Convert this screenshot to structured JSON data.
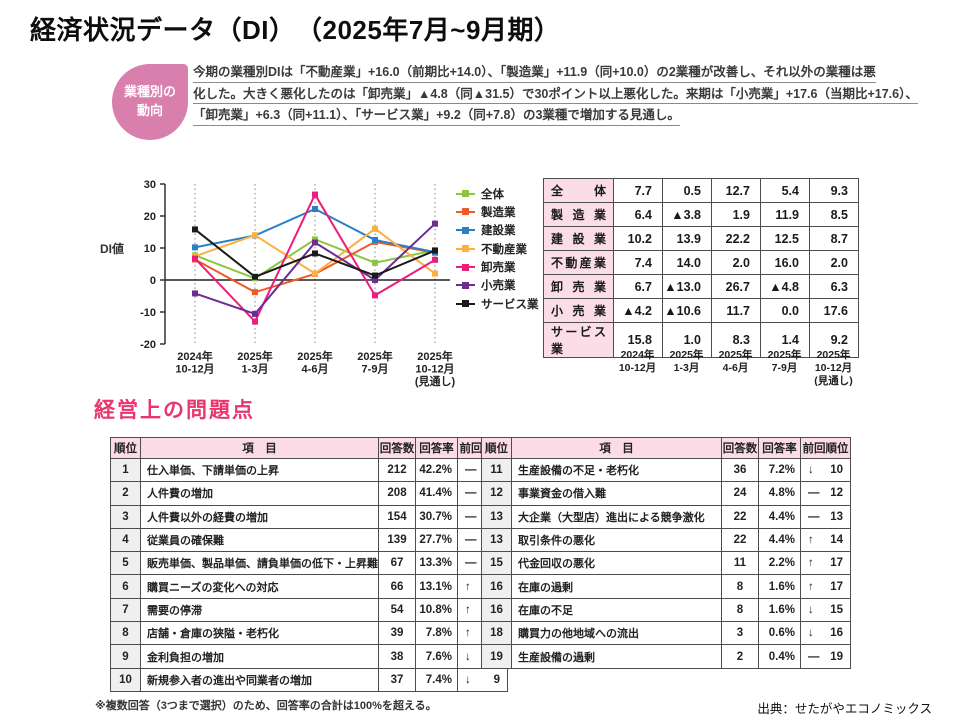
{
  "page": {
    "title": "経済状況データ（DI）　（2025年7月~9月期）",
    "source": "出典：せたがやエコノミックス"
  },
  "badge": {
    "line1": "業種別の",
    "line2": "動向",
    "color": "#d97fae"
  },
  "summary": {
    "lines": [
      "今期の業種別DIは「不動産業」+16.0（前期比+14.0）、「製造業」+11.9（同+10.0）の2業種が改善し、それ以外の業種は悪",
      "化した。大きく悪化したのは「卸売業」▲4.8（同▲31.5）で30ポイント以上悪化した。来期は「小売業」+17.6（当期比+17.6）、",
      "「卸売業」+6.3（同+11.1）、「サービス業」+9.2（同+7.8）の3業種で増加する見通し。"
    ]
  },
  "chart_data": {
    "type": "line",
    "title": "",
    "xlabel": "",
    "ylabel": "DI値",
    "ylim": [
      -20,
      30
    ],
    "yticks": [
      30,
      20,
      10,
      0,
      -10,
      -20
    ],
    "grid": "dotted-vertical",
    "legend_position": "right",
    "categories": [
      [
        "2024年",
        "10-12月"
      ],
      [
        "2025年",
        "1-3月"
      ],
      [
        "2025年",
        "4-6月"
      ],
      [
        "2025年",
        "7-9月"
      ],
      [
        "2025年",
        "10-12月",
        "(見通し)"
      ]
    ],
    "series": [
      {
        "name": "全体",
        "color": "#8cc63e",
        "values": [
          7.7,
          0.5,
          12.7,
          5.4,
          9.3
        ]
      },
      {
        "name": "製造業",
        "color": "#f0592a",
        "values": [
          6.4,
          -3.8,
          1.9,
          11.9,
          8.5
        ]
      },
      {
        "name": "建設業",
        "color": "#2980c4",
        "values": [
          10.2,
          13.9,
          22.2,
          12.5,
          8.7
        ]
      },
      {
        "name": "不動産業",
        "color": "#fbb03f",
        "values": [
          7.4,
          14.0,
          2.0,
          16.0,
          2.0
        ]
      },
      {
        "name": "卸売業",
        "color": "#ec1e79",
        "values": [
          6.7,
          -13.0,
          26.7,
          -4.8,
          6.3
        ]
      },
      {
        "name": "小売業",
        "color": "#6e2d91",
        "values": [
          -4.2,
          -10.6,
          11.7,
          0.0,
          17.6
        ]
      },
      {
        "name": "サービス業",
        "color": "#1a1a1a",
        "values": [
          15.8,
          1.0,
          8.3,
          1.4,
          9.2
        ]
      }
    ]
  },
  "di_table": {
    "rows": [
      {
        "label": "全体",
        "values": [
          "7.7",
          "0.5",
          "12.7",
          "5.4",
          "9.3"
        ]
      },
      {
        "label": "製造業",
        "values": [
          "6.4",
          "▲3.8",
          "1.9",
          "11.9",
          "8.5"
        ]
      },
      {
        "label": "建設業",
        "values": [
          "10.2",
          "13.9",
          "22.2",
          "12.5",
          "8.7"
        ]
      },
      {
        "label": "不動産業",
        "values": [
          "7.4",
          "14.0",
          "2.0",
          "16.0",
          "2.0"
        ]
      },
      {
        "label": "卸売業",
        "values": [
          "6.7",
          "▲13.0",
          "26.7",
          "▲4.8",
          "6.3"
        ]
      },
      {
        "label": "小売業",
        "values": [
          "▲4.2",
          "▲10.6",
          "11.7",
          "0.0",
          "17.6"
        ]
      },
      {
        "label": "サービス業",
        "values": [
          "15.8",
          "1.0",
          "8.3",
          "1.4",
          "9.2"
        ]
      }
    ],
    "period_labels": [
      [
        "2024年",
        "10-12月"
      ],
      [
        "2025年",
        "1-3月"
      ],
      [
        "2025年",
        "4-6月"
      ],
      [
        "2025年",
        "7-9月"
      ],
      [
        "2025年",
        "10-12月",
        "(見通し)"
      ]
    ]
  },
  "problems": {
    "section_title": "経営上の問題点",
    "headers": [
      "順位",
      "項　目",
      "回答数",
      "回答率",
      "前回順位"
    ],
    "left_rows": [
      {
        "rank": "1",
        "item": "仕入単価、下請単価の上昇",
        "count": "212",
        "rate": "42.2%",
        "dir": "—",
        "prev": "1"
      },
      {
        "rank": "2",
        "item": "人件費の増加",
        "count": "208",
        "rate": "41.4%",
        "dir": "—",
        "prev": "2"
      },
      {
        "rank": "3",
        "item": "人件費以外の経費の増加",
        "count": "154",
        "rate": "30.7%",
        "dir": "—",
        "prev": "3"
      },
      {
        "rank": "4",
        "item": "従業員の確保難",
        "count": "139",
        "rate": "27.7%",
        "dir": "—",
        "prev": "4"
      },
      {
        "rank": "5",
        "item": "販売単価、製品単価、請負単価の低下・上昇難",
        "count": "67",
        "rate": "13.3%",
        "dir": "—",
        "prev": "5"
      },
      {
        "rank": "6",
        "item": "購買ニーズの変化への対応",
        "count": "66",
        "rate": "13.1%",
        "dir": "↑",
        "prev": "7"
      },
      {
        "rank": "7",
        "item": "需要の停滞",
        "count": "54",
        "rate": "10.8%",
        "dir": "↑",
        "prev": "8"
      },
      {
        "rank": "8",
        "item": "店舗・倉庫の狭隘・老朽化",
        "count": "39",
        "rate": "7.8%",
        "dir": "↑",
        "prev": "11"
      },
      {
        "rank": "9",
        "item": "金利負担の増加",
        "count": "38",
        "rate": "7.6%",
        "dir": "↓",
        "prev": "6"
      },
      {
        "rank": "10",
        "item": "新規参入者の進出や同業者の増加",
        "count": "37",
        "rate": "7.4%",
        "dir": "↓",
        "prev": "9"
      }
    ],
    "right_rows": [
      {
        "rank": "11",
        "item": "生産設備の不足・老朽化",
        "count": "36",
        "rate": "7.2%",
        "dir": "↓",
        "prev": "10"
      },
      {
        "rank": "12",
        "item": "事業資金の借入難",
        "count": "24",
        "rate": "4.8%",
        "dir": "—",
        "prev": "12"
      },
      {
        "rank": "13",
        "item": "大企業（大型店）進出による競争激化",
        "count": "22",
        "rate": "4.4%",
        "dir": "—",
        "prev": "13"
      },
      {
        "rank": "13",
        "item": "取引条件の悪化",
        "count": "22",
        "rate": "4.4%",
        "dir": "↑",
        "prev": "14"
      },
      {
        "rank": "15",
        "item": "代金回収の悪化",
        "count": "11",
        "rate": "2.2%",
        "dir": "↑",
        "prev": "17"
      },
      {
        "rank": "16",
        "item": "在庫の過剰",
        "count": "8",
        "rate": "1.6%",
        "dir": "↑",
        "prev": "17"
      },
      {
        "rank": "16",
        "item": "在庫の不足",
        "count": "8",
        "rate": "1.6%",
        "dir": "↓",
        "prev": "15"
      },
      {
        "rank": "18",
        "item": "購買力の他地域への流出",
        "count": "3",
        "rate": "0.6%",
        "dir": "↓",
        "prev": "16"
      },
      {
        "rank": "19",
        "item": "生産設備の過剰",
        "count": "2",
        "rate": "0.4%",
        "dir": "—",
        "prev": "19"
      }
    ],
    "footnote": "※複数回答（3つまで選択）のため、回答率の合計は100%を超える。"
  }
}
